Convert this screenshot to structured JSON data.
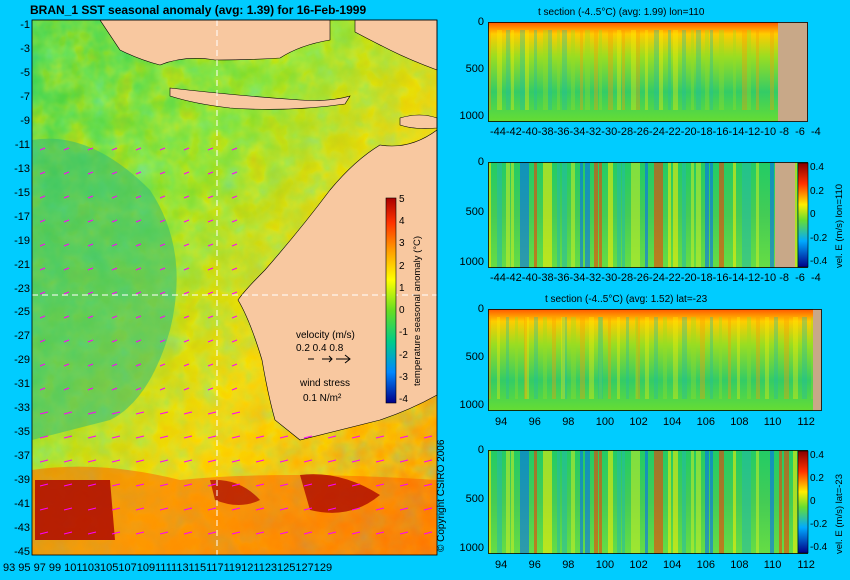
{
  "map": {
    "title": "BRAN_1 SST seasonal anomaly (avg: 1.39) for 16-Feb-1999",
    "lat_labels": [
      "-1",
      "-3",
      "-5",
      "-7",
      "-9",
      "-11",
      "-13",
      "-15",
      "-17",
      "-19",
      "-21",
      "-23",
      "-25",
      "-27",
      "-29",
      "-31",
      "-33",
      "-35",
      "-37",
      "-39",
      "-41",
      "-43",
      "-45"
    ],
    "lon_labels": [
      "93",
      "95",
      "97",
      "99",
      "101",
      "103",
      "105",
      "107",
      "109",
      "111",
      "113",
      "115",
      "117",
      "119",
      "121",
      "123",
      "125",
      "127",
      "129"
    ],
    "lon_tick_text": "93 95 97 99 101103105107109111113115117119121123125127129",
    "colorbar": {
      "label": "temperature seasonal anomaly (°C)",
      "ticks": [
        "5",
        "4",
        "3",
        "2",
        "1",
        "0",
        "-1",
        "-2",
        "-3",
        "-4"
      ]
    },
    "velocity_legend": {
      "title": "velocity (m/s)",
      "values": "0.2 0.4 0.8"
    },
    "wind_legend": {
      "title": "wind stress",
      "value": "0.1 N/m²"
    },
    "crosshair": {
      "lat": -23,
      "lon": 110
    },
    "copyright": "© Copyright CSIRO 2006",
    "colors": {
      "land": "#f8c8a0",
      "background": "#00ccff",
      "crosshair": "#ffffff",
      "vectors": "#ff00ff"
    }
  },
  "panels": [
    {
      "title": "t section (-4..5°C) (avg: 1.99) lon=110",
      "y_ticks": [
        "0",
        "500",
        "1000"
      ],
      "x_tick_text": "-44-42-40-38-36-34-32-30-28-26-24-22-20-18-16-14-12-10 -8  -6  -4",
      "side_label": "",
      "colorbar_ticks": []
    },
    {
      "title": "",
      "y_ticks": [
        "0",
        "500",
        "1000"
      ],
      "x_tick_text": "-44-42-40-38-36-34-32-30-28-26-24-22-20-18-16-14-12-10 -8  -6  -4",
      "side_label": "vel. E (m/s) lon=110",
      "colorbar_ticks": [
        "0.4",
        "0.2",
        "0",
        "-0.2",
        "-0.4"
      ]
    },
    {
      "title": "t section (-4..5°C) (avg: 1.52) lat=-23",
      "y_ticks": [
        "0",
        "500",
        "1000"
      ],
      "x_ticks": [
        "94",
        "96",
        "98",
        "100",
        "102",
        "104",
        "106",
        "108",
        "110",
        "112"
      ],
      "side_label": "",
      "colorbar_ticks": []
    },
    {
      "title": "",
      "y_ticks": [
        "0",
        "500",
        "1000"
      ],
      "x_ticks": [
        "94",
        "96",
        "98",
        "100",
        "102",
        "104",
        "106",
        "108",
        "110",
        "112"
      ],
      "side_label": "vel. E (m/s) lat=-23",
      "colorbar_ticks": [
        "0.4",
        "0.2",
        "0",
        "-0.2",
        "-0.4"
      ]
    }
  ]
}
